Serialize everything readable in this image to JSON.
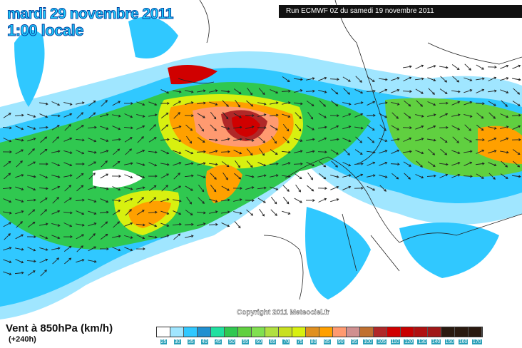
{
  "header": {
    "date": "mardi 29 novembre 2011",
    "time": "1:00 locale",
    "run": "Run ECMWF 0Z du samedi 19 novembre 2011"
  },
  "copyright": "Copyright 2011 Meteociel.fr",
  "legend": {
    "title": "Vent à 850hPa (km/h)",
    "subtitle": "(+240h)",
    "labels": [
      "25",
      "30",
      "35",
      "40",
      "45",
      "50",
      "55",
      "60",
      "65",
      "70",
      "75",
      "80",
      "85",
      "90",
      "95",
      "100",
      "105",
      "110",
      "120",
      "130",
      "140",
      "150",
      "160",
      "170"
    ],
    "colors": [
      "#ffffff",
      "#a0e6ff",
      "#30c8ff",
      "#2090d0",
      "#20e0a0",
      "#30c850",
      "#60d040",
      "#80e050",
      "#b0e040",
      "#c8e020",
      "#d8f010",
      "#e09020",
      "#ffa000",
      "#ff9a70",
      "#d09090",
      "#c07030",
      "#b02828",
      "#d00000",
      "#c80000",
      "#b01010",
      "#a01818",
      "#2a1a10",
      "#2a1a10",
      "#2a1a10"
    ]
  }
}
